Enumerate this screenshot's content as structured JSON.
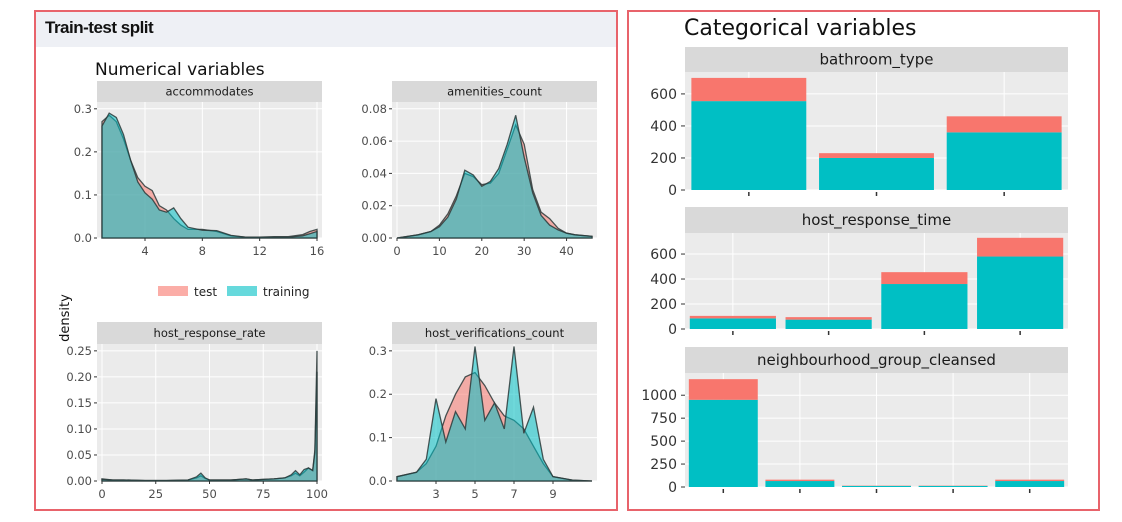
{
  "colors": {
    "test": "#f8766d",
    "training": "#00bfc4",
    "panel_border": "#e8636b",
    "plot_bg": "#ebebeb",
    "strip_bg": "#d9d9d9",
    "header_bg": "#eef0f5"
  },
  "left_panel": {
    "header": "Train-test split",
    "subtitle": "Numerical variables",
    "y_axis_label": "density"
  },
  "right_panel": {
    "title": "Categorical variables"
  },
  "legend": {
    "test": "test",
    "training": "training"
  },
  "chart_data": [
    {
      "type": "area",
      "title": "accommodates",
      "x": [
        1,
        1.5,
        2,
        2.5,
        3,
        3.5,
        4,
        4.5,
        5,
        5.5,
        6,
        6.5,
        7,
        8,
        9,
        10,
        11,
        12,
        13,
        14,
        15,
        15.5,
        16
      ],
      "series": [
        {
          "name": "test",
          "values": [
            0.27,
            0.285,
            0.27,
            0.23,
            0.18,
            0.14,
            0.12,
            0.11,
            0.075,
            0.065,
            0.045,
            0.03,
            0.02,
            0.02,
            0.015,
            0.005,
            0.002,
            0.002,
            0.003,
            0.003,
            0.008,
            0.015,
            0.02
          ]
        },
        {
          "name": "training",
          "values": [
            0.26,
            0.29,
            0.28,
            0.24,
            0.18,
            0.13,
            0.105,
            0.09,
            0.065,
            0.06,
            0.07,
            0.045,
            0.025,
            0.018,
            0.017,
            0.006,
            0.002,
            0.002,
            0.002,
            0.002,
            0.005,
            0.01,
            0.015
          ]
        }
      ],
      "xlim": [
        1,
        16
      ],
      "ylim": [
        0,
        0.3
      ],
      "xticks": [
        4,
        8,
        12,
        16
      ],
      "yticks": [
        0,
        0.1,
        0.2,
        0.3
      ],
      "ytick_labels": [
        "0.0",
        "0.1",
        "0.2",
        "0.3"
      ]
    },
    {
      "type": "area",
      "title": "amenities_count",
      "x": [
        0,
        5,
        8,
        10,
        12,
        14,
        16,
        18,
        20,
        22,
        24,
        26,
        28,
        30,
        32,
        34,
        36,
        38,
        40,
        42,
        46
      ],
      "series": [
        {
          "name": "test",
          "values": [
            0,
            0.002,
            0.004,
            0.008,
            0.015,
            0.026,
            0.04,
            0.038,
            0.033,
            0.034,
            0.04,
            0.055,
            0.07,
            0.058,
            0.03,
            0.016,
            0.012,
            0.006,
            0.003,
            0.002,
            0.001
          ]
        },
        {
          "name": "training",
          "values": [
            0,
            0.002,
            0.004,
            0.007,
            0.013,
            0.024,
            0.042,
            0.039,
            0.032,
            0.035,
            0.043,
            0.058,
            0.076,
            0.05,
            0.028,
            0.014,
            0.008,
            0.005,
            0.003,
            0.002,
            0.001
          ]
        }
      ],
      "xlim": [
        0,
        46
      ],
      "ylim": [
        0,
        0.08
      ],
      "xticks": [
        0,
        10,
        20,
        30,
        40
      ],
      "yticks": [
        0,
        0.02,
        0.04,
        0.06,
        0.08
      ],
      "ytick_labels": [
        "0.00",
        "0.02",
        "0.04",
        "0.06",
        "0.08"
      ]
    },
    {
      "type": "area",
      "title": "host_response_rate",
      "x": [
        0,
        5,
        10,
        20,
        30,
        40,
        44,
        46,
        48,
        50,
        60,
        67,
        70,
        75,
        80,
        85,
        88,
        90,
        92,
        94,
        96,
        98,
        99,
        100
      ],
      "series": [
        {
          "name": "test",
          "values": [
            0.004,
            0.002,
            0.002,
            0.001,
            0.001,
            0.002,
            0.006,
            0.01,
            0.005,
            0.002,
            0.002,
            0.004,
            0.002,
            0.003,
            0.004,
            0.006,
            0.01,
            0.015,
            0.01,
            0.017,
            0.025,
            0.02,
            0.06,
            0.25
          ]
        },
        {
          "name": "training",
          "values": [
            0.003,
            0.002,
            0.002,
            0.001,
            0.001,
            0.002,
            0.008,
            0.015,
            0.006,
            0.002,
            0.002,
            0.004,
            0.002,
            0.003,
            0.004,
            0.006,
            0.012,
            0.02,
            0.012,
            0.022,
            0.025,
            0.02,
            0.055,
            0.21
          ]
        }
      ],
      "xlim": [
        0,
        100
      ],
      "ylim": [
        0,
        0.25
      ],
      "xticks": [
        0,
        25,
        50,
        75,
        100
      ],
      "yticks": [
        0,
        0.05,
        0.1,
        0.15,
        0.2,
        0.25
      ],
      "ytick_labels": [
        "0.00",
        "0.05",
        "0.10",
        "0.15",
        "0.20",
        "0.25"
      ]
    },
    {
      "type": "area",
      "title": "host_verifications_count",
      "x": [
        1,
        2,
        2.5,
        3,
        3.5,
        4,
        4.5,
        5,
        5.5,
        6,
        6.5,
        7,
        7.5,
        8,
        8.5,
        9,
        10,
        11
      ],
      "series": [
        {
          "name": "test",
          "values": [
            0.01,
            0.02,
            0.04,
            0.08,
            0.15,
            0.2,
            0.24,
            0.25,
            0.22,
            0.18,
            0.15,
            0.14,
            0.12,
            0.08,
            0.04,
            0.01,
            0.002,
            0
          ]
        },
        {
          "name": "training",
          "values": [
            0.01,
            0.02,
            0.05,
            0.19,
            0.09,
            0.16,
            0.12,
            0.31,
            0.14,
            0.18,
            0.12,
            0.31,
            0.11,
            0.17,
            0.05,
            0.01,
            0.002,
            0
          ]
        }
      ],
      "xlim": [
        1,
        11
      ],
      "ylim": [
        0,
        0.3
      ],
      "xticks": [
        3,
        5,
        7,
        9
      ],
      "yticks": [
        0,
        0.1,
        0.2,
        0.3
      ],
      "ytick_labels": [
        "0.0",
        "0.1",
        "0.2",
        "0.3"
      ]
    },
    {
      "type": "bar",
      "title": "bathroom_type",
      "stacked": true,
      "categories": [
        "",
        "",
        ""
      ],
      "series": [
        {
          "name": "training",
          "values": [
            555,
            200,
            360
          ]
        },
        {
          "name": "test",
          "values": [
            145,
            30,
            100
          ]
        }
      ],
      "ylim": [
        0,
        700
      ],
      "yticks": [
        0,
        200,
        400,
        600
      ]
    },
    {
      "type": "bar",
      "title": "host_response_time",
      "stacked": true,
      "categories": [
        "",
        "",
        "",
        ""
      ],
      "series": [
        {
          "name": "training",
          "values": [
            85,
            75,
            360,
            580
          ]
        },
        {
          "name": "test",
          "values": [
            20,
            20,
            95,
            150
          ]
        }
      ],
      "ylim": [
        0,
        730
      ],
      "yticks": [
        0,
        200,
        400,
        600
      ]
    },
    {
      "type": "bar",
      "title": "neighbourhood_group_cleansed",
      "stacked": true,
      "categories": [
        "",
        "",
        "",
        "",
        ""
      ],
      "series": [
        {
          "name": "training",
          "values": [
            950,
            65,
            12,
            12,
            65
          ]
        },
        {
          "name": "test",
          "values": [
            225,
            15,
            3,
            3,
            15
          ]
        }
      ],
      "ylim": [
        0,
        1180
      ],
      "yticks": [
        0,
        250,
        500,
        750,
        1000
      ]
    }
  ]
}
